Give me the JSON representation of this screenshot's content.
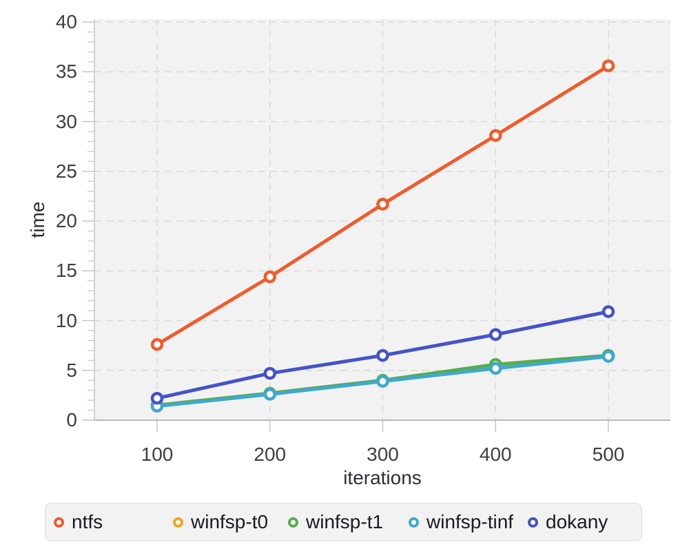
{
  "chart_data": {
    "type": "line",
    "title": "",
    "xlabel": "iterations",
    "ylabel": "time",
    "x": [
      100,
      200,
      300,
      400,
      500
    ],
    "x_tick_labels": [
      "100",
      "200",
      "300",
      "400",
      "500"
    ],
    "y_ticks": [
      0,
      5,
      10,
      15,
      20,
      25,
      30,
      35,
      40
    ],
    "y_minor_tick_step": 1,
    "xlim": [
      45,
      555
    ],
    "ylim": [
      0,
      40
    ],
    "grid": "dashed-both-axes",
    "legend_position": "bottom",
    "plot_background": "#f2f2f2",
    "grid_color": "#d9d9d9",
    "axis_color": "#c6c6ca",
    "tick_text_color": "#3e3e42",
    "series": [
      {
        "name": "ntfs",
        "color": "#ee5c2d",
        "values": [
          7.6,
          14.4,
          21.7,
          28.6,
          35.6
        ]
      },
      {
        "name": "winfsp-t0",
        "color": "#f2a41f",
        "values": [
          1.5,
          2.7,
          4.0,
          5.3,
          6.5
        ]
      },
      {
        "name": "winfsp-t1",
        "color": "#57ac4f",
        "values": [
          1.5,
          2.7,
          4.0,
          5.6,
          6.5
        ]
      },
      {
        "name": "winfsp-tinf",
        "color": "#3fa8cd",
        "values": [
          1.4,
          2.6,
          3.9,
          5.2,
          6.4
        ]
      },
      {
        "name": "dokany",
        "color": "#4553c8",
        "values": [
          2.2,
          4.7,
          6.5,
          8.6,
          10.9
        ]
      }
    ]
  }
}
